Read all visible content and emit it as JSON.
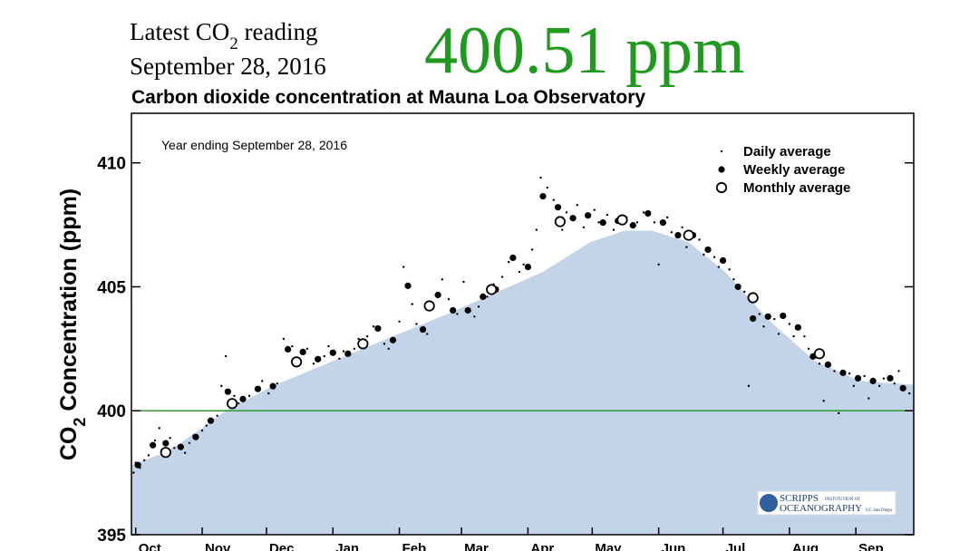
{
  "header": {
    "reading_label": [
      "Latest CO",
      "2",
      " reading"
    ],
    "reading_date": "September 28, 2016",
    "reading_value": "400.51 ppm"
  },
  "chart_data": {
    "type": "scatter",
    "title": "Carbon dioxide concentration at Mauna Loa Observatory",
    "annotation": "Year ending September 28, 2016",
    "ylabel": [
      "CO",
      "2",
      " Concentration (ppm)"
    ],
    "logo": [
      "SCRIPPS",
      "INSTITUTION OF",
      "OCEANOGRAPHY",
      "UC San Diego"
    ],
    "xlim": [
      0,
      365
    ],
    "ylim": [
      395,
      412
    ],
    "xticks": [
      {
        "value": 2,
        "label": "Oct"
      },
      {
        "value": 33,
        "label": "Nov"
      },
      {
        "value": 63,
        "label": "Dec"
      },
      {
        "value": 94,
        "label": "Jan"
      },
      {
        "value": 125,
        "label": "Feb"
      },
      {
        "value": 154,
        "label": "Mar"
      },
      {
        "value": 185,
        "label": "Apr"
      },
      {
        "value": 215,
        "label": "May"
      },
      {
        "value": 246,
        "label": "Jun"
      },
      {
        "value": 276,
        "label": "Jul"
      },
      {
        "value": 307,
        "label": "Aug"
      },
      {
        "value": 338,
        "label": "Sep"
      }
    ],
    "yticks": [
      395,
      400,
      405,
      410
    ],
    "reference_line": {
      "value": 400,
      "color": "#2e9a2e"
    },
    "area": {
      "color": "#c3d4e8",
      "x": [
        0,
        15,
        23,
        44,
        66,
        108,
        150,
        192,
        214,
        230,
        243,
        260,
        277,
        298,
        319,
        340,
        365
      ],
      "values": [
        397.8,
        398.3,
        398.7,
        400.0,
        401.0,
        402.5,
        404.0,
        405.6,
        406.8,
        407.26,
        407.26,
        406.8,
        405.6,
        403.6,
        402.0,
        401.2,
        401.05
      ]
    },
    "legend": "upper right",
    "series": [
      {
        "name": "Daily average",
        "marker": "dot",
        "color": "#000000",
        "x": [
          1,
          2,
          4,
          6,
          8,
          11,
          13,
          14,
          18,
          20,
          25,
          27,
          29,
          33,
          35,
          40,
          42,
          44,
          48,
          50,
          55,
          58,
          61,
          64,
          68,
          71,
          75,
          78,
          82,
          85,
          90,
          92,
          97,
          99,
          104,
          106,
          110,
          113,
          118,
          120,
          125,
          127,
          131,
          133,
          138,
          141,
          145,
          148,
          152,
          155,
          160,
          162,
          166,
          169,
          173,
          176,
          181,
          183,
          187,
          189,
          191,
          194,
          197,
          201,
          203,
          208,
          211,
          216,
          218,
          222,
          225,
          231,
          236,
          239,
          244,
          246,
          250,
          252,
          257,
          259,
          265,
          267,
          272,
          274,
          279,
          281,
          286,
          288,
          293,
          295,
          300,
          302,
          307,
          309,
          314,
          316,
          321,
          323,
          328,
          330,
          335,
          337,
          342,
          344,
          349,
          351,
          356,
          358,
          363
        ],
        "values": [
          397.5,
          397.9,
          397.7,
          398.0,
          398.2,
          398.8,
          399.3,
          398.4,
          398.9,
          398.5,
          398.3,
          398.7,
          399.0,
          399.2,
          399.4,
          399.8,
          401.0,
          402.2,
          400.6,
          400.3,
          400.6,
          400.9,
          401.2,
          400.7,
          401.1,
          402.9,
          402.6,
          402.1,
          402.5,
          401.9,
          402.2,
          402.6,
          402.1,
          402.4,
          402.5,
          402.9,
          403.0,
          403.4,
          402.7,
          402.5,
          403.6,
          405.8,
          404.3,
          403.5,
          403.1,
          404.2,
          405.3,
          404.5,
          403.9,
          405.2,
          403.8,
          404.2,
          404.6,
          405.1,
          405.4,
          406.0,
          405.6,
          405.9,
          406.5,
          407.3,
          409.4,
          409.0,
          408.5,
          407.3,
          408.0,
          408.3,
          407.4,
          408.1,
          407.6,
          407.9,
          407.3,
          407.8,
          407.6,
          408.0,
          407.6,
          405.9,
          407.8,
          407.2,
          407.4,
          406.6,
          406.9,
          406.3,
          406.2,
          405.8,
          405.7,
          405.3,
          404.8,
          401.0,
          403.9,
          403.4,
          403.7,
          403.1,
          403.5,
          403.0,
          403.0,
          402.5,
          401.9,
          400.4,
          401.6,
          399.9,
          401.5,
          401.0,
          401.4,
          400.5,
          401.0,
          401.3,
          401.1,
          401.6,
          400.7
        ]
      },
      {
        "name": "Weekly average",
        "marker": "filled",
        "color": "#000000",
        "x": [
          3,
          10,
          16,
          23,
          30,
          37,
          45,
          52,
          59,
          66,
          73,
          80,
          87,
          94,
          101,
          108,
          115,
          122,
          129,
          136,
          143,
          150,
          157,
          164,
          170,
          178,
          185,
          192,
          199,
          206,
          213,
          220,
          227,
          234,
          241,
          248,
          255,
          262,
          269,
          276,
          283,
          290,
          297,
          304,
          311,
          318,
          325,
          332,
          339,
          346,
          354,
          360
        ],
        "values": [
          397.81,
          398.61,
          398.69,
          398.54,
          398.94,
          399.6,
          400.77,
          400.47,
          400.88,
          400.99,
          402.48,
          402.37,
          402.08,
          402.34,
          402.3,
          402.7,
          403.32,
          402.85,
          405.04,
          403.28,
          404.67,
          404.05,
          404.05,
          404.6,
          404.89,
          406.17,
          405.8,
          408.65,
          408.21,
          407.77,
          407.88,
          407.59,
          407.66,
          407.48,
          407.96,
          407.59,
          407.08,
          407.08,
          406.5,
          406.06,
          405.0,
          403.72,
          403.8,
          403.83,
          403.36,
          402.19,
          401.86,
          401.53,
          401.31,
          401.2,
          401.31,
          400.91
        ]
      },
      {
        "name": "Monthly average",
        "marker": "hollow",
        "color": "#000000",
        "x": [
          16,
          47,
          77,
          108,
          139,
          168,
          200,
          229,
          260,
          290,
          321
        ],
        "values": [
          398.32,
          400.29,
          401.97,
          402.7,
          404.23,
          404.89,
          407.63,
          407.7,
          407.08,
          404.56,
          402.3
        ]
      }
    ]
  }
}
